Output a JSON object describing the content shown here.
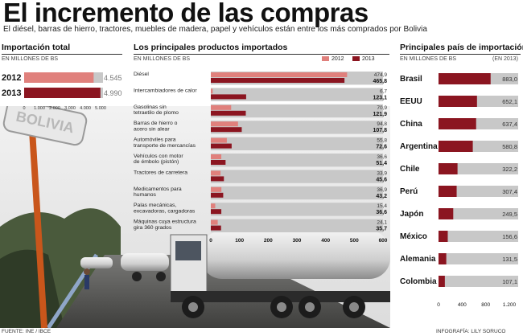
{
  "header": {
    "title": "El incremento de las compras",
    "subtitle": "El diésel, barras de hierro, tractores, muebles de madera, papel y vehículos están entre los más comprados por Bolivia"
  },
  "colors": {
    "c2012": "#e0807c",
    "c2013": "#8b1520",
    "grey": "#c8c8c8"
  },
  "photo": {
    "sign_text": "BOLIVIA"
  },
  "footer": {
    "source": "FUENTE: INE / IBCE",
    "credit": "INFOGRAFÍA: LILY SORUCO"
  },
  "chart_data": [
    {
      "type": "bar",
      "title": "Importación total",
      "unit": "EN MILLONES DE BS",
      "categories": [
        "2012",
        "2013"
      ],
      "values": [
        4545,
        4990
      ],
      "labels": [
        "4.545",
        "4.990"
      ],
      "xlim": [
        0,
        5000
      ],
      "ticks": [
        "0",
        "1.000",
        "2.000",
        "3.000",
        "4.000",
        "5.000"
      ]
    },
    {
      "type": "bar",
      "title": "Los principales productos importados",
      "unit": "EN MILLONES DE BS",
      "categories": [
        "Diésel",
        "Intercambiadores de calor",
        "Gasolinas sin tetraetilo de plomo",
        "Barras de hierro o acero sin alear",
        "Automóviles para transporte de mercancías",
        "Vehículos con motor de émbolo (pistón)",
        "Tractores de carretera",
        "Medicamentos para humanos",
        "Palas mecánicas, excavadoras, cargadoras",
        "Máquinas cuya estructura gira 360 grados"
      ],
      "cat_lines": [
        [
          "Diésel"
        ],
        [
          "Intercambiadores de calor"
        ],
        [
          "Gasolinas sin",
          "tetraetilo de plomo"
        ],
        [
          "Barras de hierro o",
          "acero sin alear"
        ],
        [
          "Automóviles para",
          "transporte de mercancías"
        ],
        [
          "Vehículos con motor",
          "de émbolo (pistón)"
        ],
        [
          "Tractores de carretera"
        ],
        [
          "Medicamentos para",
          "humanos"
        ],
        [
          "Palas mecánicas,",
          "excavadoras, cargadoras"
        ],
        [
          "Máquinas cuya estructura",
          "gira 360 grados"
        ]
      ],
      "series": [
        {
          "name": "2012",
          "values": [
            474.9,
            6.7,
            70.9,
            94.8,
            55.8,
            36.6,
            33.9,
            36.9,
            15.4,
            24.1
          ],
          "labels": [
            "474,9",
            "6,7",
            "70,9",
            "94,8",
            "55,8",
            "36,6",
            "33,9",
            "36,9",
            "15,4",
            "24,1"
          ]
        },
        {
          "name": "2013",
          "values": [
            465.8,
            123.1,
            121.9,
            107.8,
            72.6,
            51.4,
            45.6,
            43.2,
            36.6,
            35.7
          ],
          "labels": [
            "465,8",
            "123,1",
            "121,9",
            "107,8",
            "72,6",
            "51,4",
            "45,6",
            "43,2",
            "36,6",
            "35,7"
          ]
        }
      ],
      "xlim": [
        0,
        600
      ],
      "ticks": [
        "0",
        "100",
        "200",
        "300",
        "400",
        "500",
        "600"
      ]
    },
    {
      "type": "bar",
      "title": "Principales país de importación",
      "unit": "EN MILLONES DE BS",
      "year_note": "(EN 2013)",
      "categories": [
        "Brasil",
        "EEUU",
        "China",
        "Argentina",
        "Chile",
        "Perú",
        "Japón",
        "México",
        "Alemania",
        "Colombia"
      ],
      "values": [
        883.0,
        652.1,
        637.4,
        580.8,
        322.2,
        307.4,
        249.5,
        156.6,
        131.5,
        107.1
      ],
      "labels": [
        "883,0",
        "652,1",
        "637,4",
        "580,8",
        "322,2",
        "307,4",
        "249,5",
        "156,6",
        "131,5",
        "107,1"
      ],
      "xlim": [
        0,
        1200
      ],
      "ticks": [
        "0",
        "400",
        "800",
        "1.200"
      ]
    }
  ]
}
